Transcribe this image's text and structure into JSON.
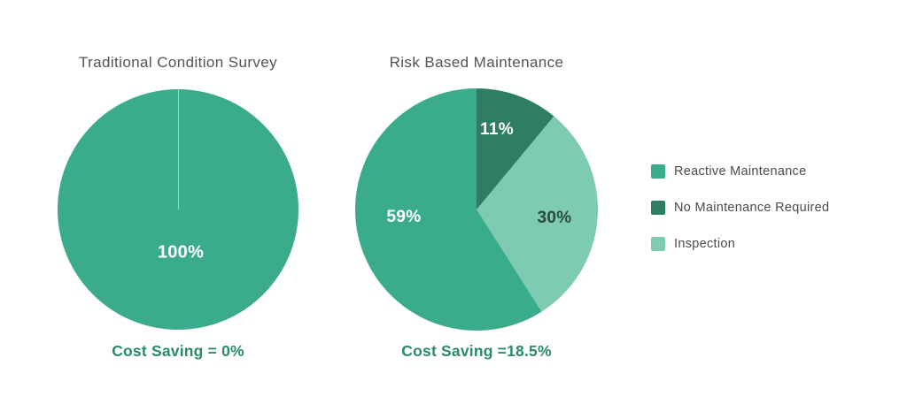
{
  "chart_data": [
    {
      "type": "pie",
      "title": "Traditional Condition Survey",
      "categories": [
        "Reactive Maintenance"
      ],
      "values": [
        100
      ],
      "colors": [
        "#3aab8b"
      ],
      "slice_labels": [
        "100%"
      ],
      "caption": "Cost Saving = 0%",
      "start_angle_deg": 0,
      "direction": "clockwise",
      "legend_position": "none"
    },
    {
      "type": "pie",
      "title": "Risk Based Maintenance",
      "categories": [
        "No Maintenance Required",
        "Inspection",
        "Reactive Maintenance"
      ],
      "values": [
        11,
        30,
        59
      ],
      "colors": [
        "#2e7d65",
        "#7dcbb0",
        "#3aab8b"
      ],
      "slice_labels": [
        "11%",
        "30%",
        "59%"
      ],
      "caption": "Cost Saving =18.5%",
      "start_angle_deg": 0,
      "direction": "clockwise",
      "legend_position": "right"
    }
  ],
  "legend": {
    "items": [
      {
        "label": "Reactive Maintenance",
        "color": "#3aab8b"
      },
      {
        "label": "No Maintenance Required",
        "color": "#2e7d65"
      },
      {
        "label": "Inspection",
        "color": "#7dcbb0"
      }
    ]
  },
  "colors": {
    "reactive_maintenance": "#3aab8b",
    "no_maintenance_required": "#2e7d65",
    "inspection": "#7dcbb0",
    "caption_green": "#2a8a6e",
    "title_gray": "#525356",
    "background": "#ffffff"
  }
}
